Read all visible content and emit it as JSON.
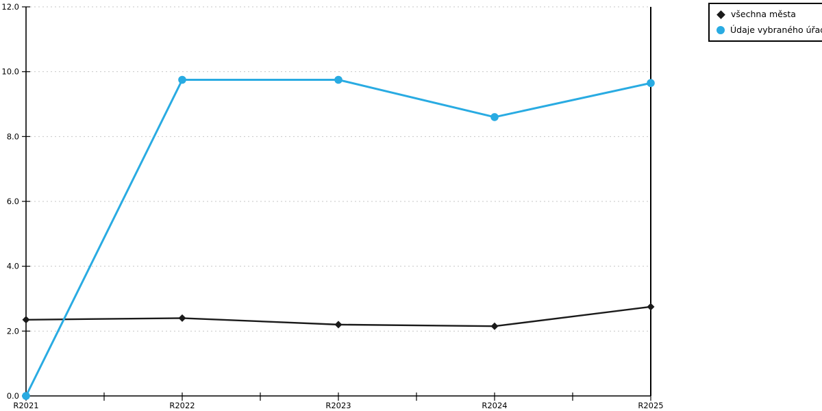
{
  "chart_data": {
    "type": "line",
    "categories": [
      "R2021",
      "R2022",
      "R2023",
      "R2024",
      "R2025"
    ],
    "series": [
      {
        "name": "všechna města",
        "marker": "diamond",
        "color": "#1a1a1a",
        "line_width": 2.4,
        "values": [
          2.35,
          2.4,
          2.2,
          2.15,
          2.75
        ]
      },
      {
        "name": "Údaje vybraného úřadu",
        "marker": "circle",
        "color": "#29abe2",
        "line_width": 3,
        "values": [
          0.0,
          9.75,
          9.75,
          8.6,
          9.65
        ]
      }
    ],
    "title": "",
    "xlabel": "",
    "ylabel": "",
    "ylim": [
      0,
      12
    ],
    "ytick_step": 2,
    "ytick_labels": [
      "0.0",
      "2.0",
      "4.0",
      "6.0",
      "8.0",
      "10.0",
      "12.0"
    ],
    "x_minor_ticks": "midpoints between categories",
    "grid": "horizontal dotted",
    "legend_position": "top-right",
    "colors": {
      "background": "#ffffff",
      "grid": "#c6c6c6",
      "axis": "#000000",
      "tick_label": "#000000"
    }
  }
}
